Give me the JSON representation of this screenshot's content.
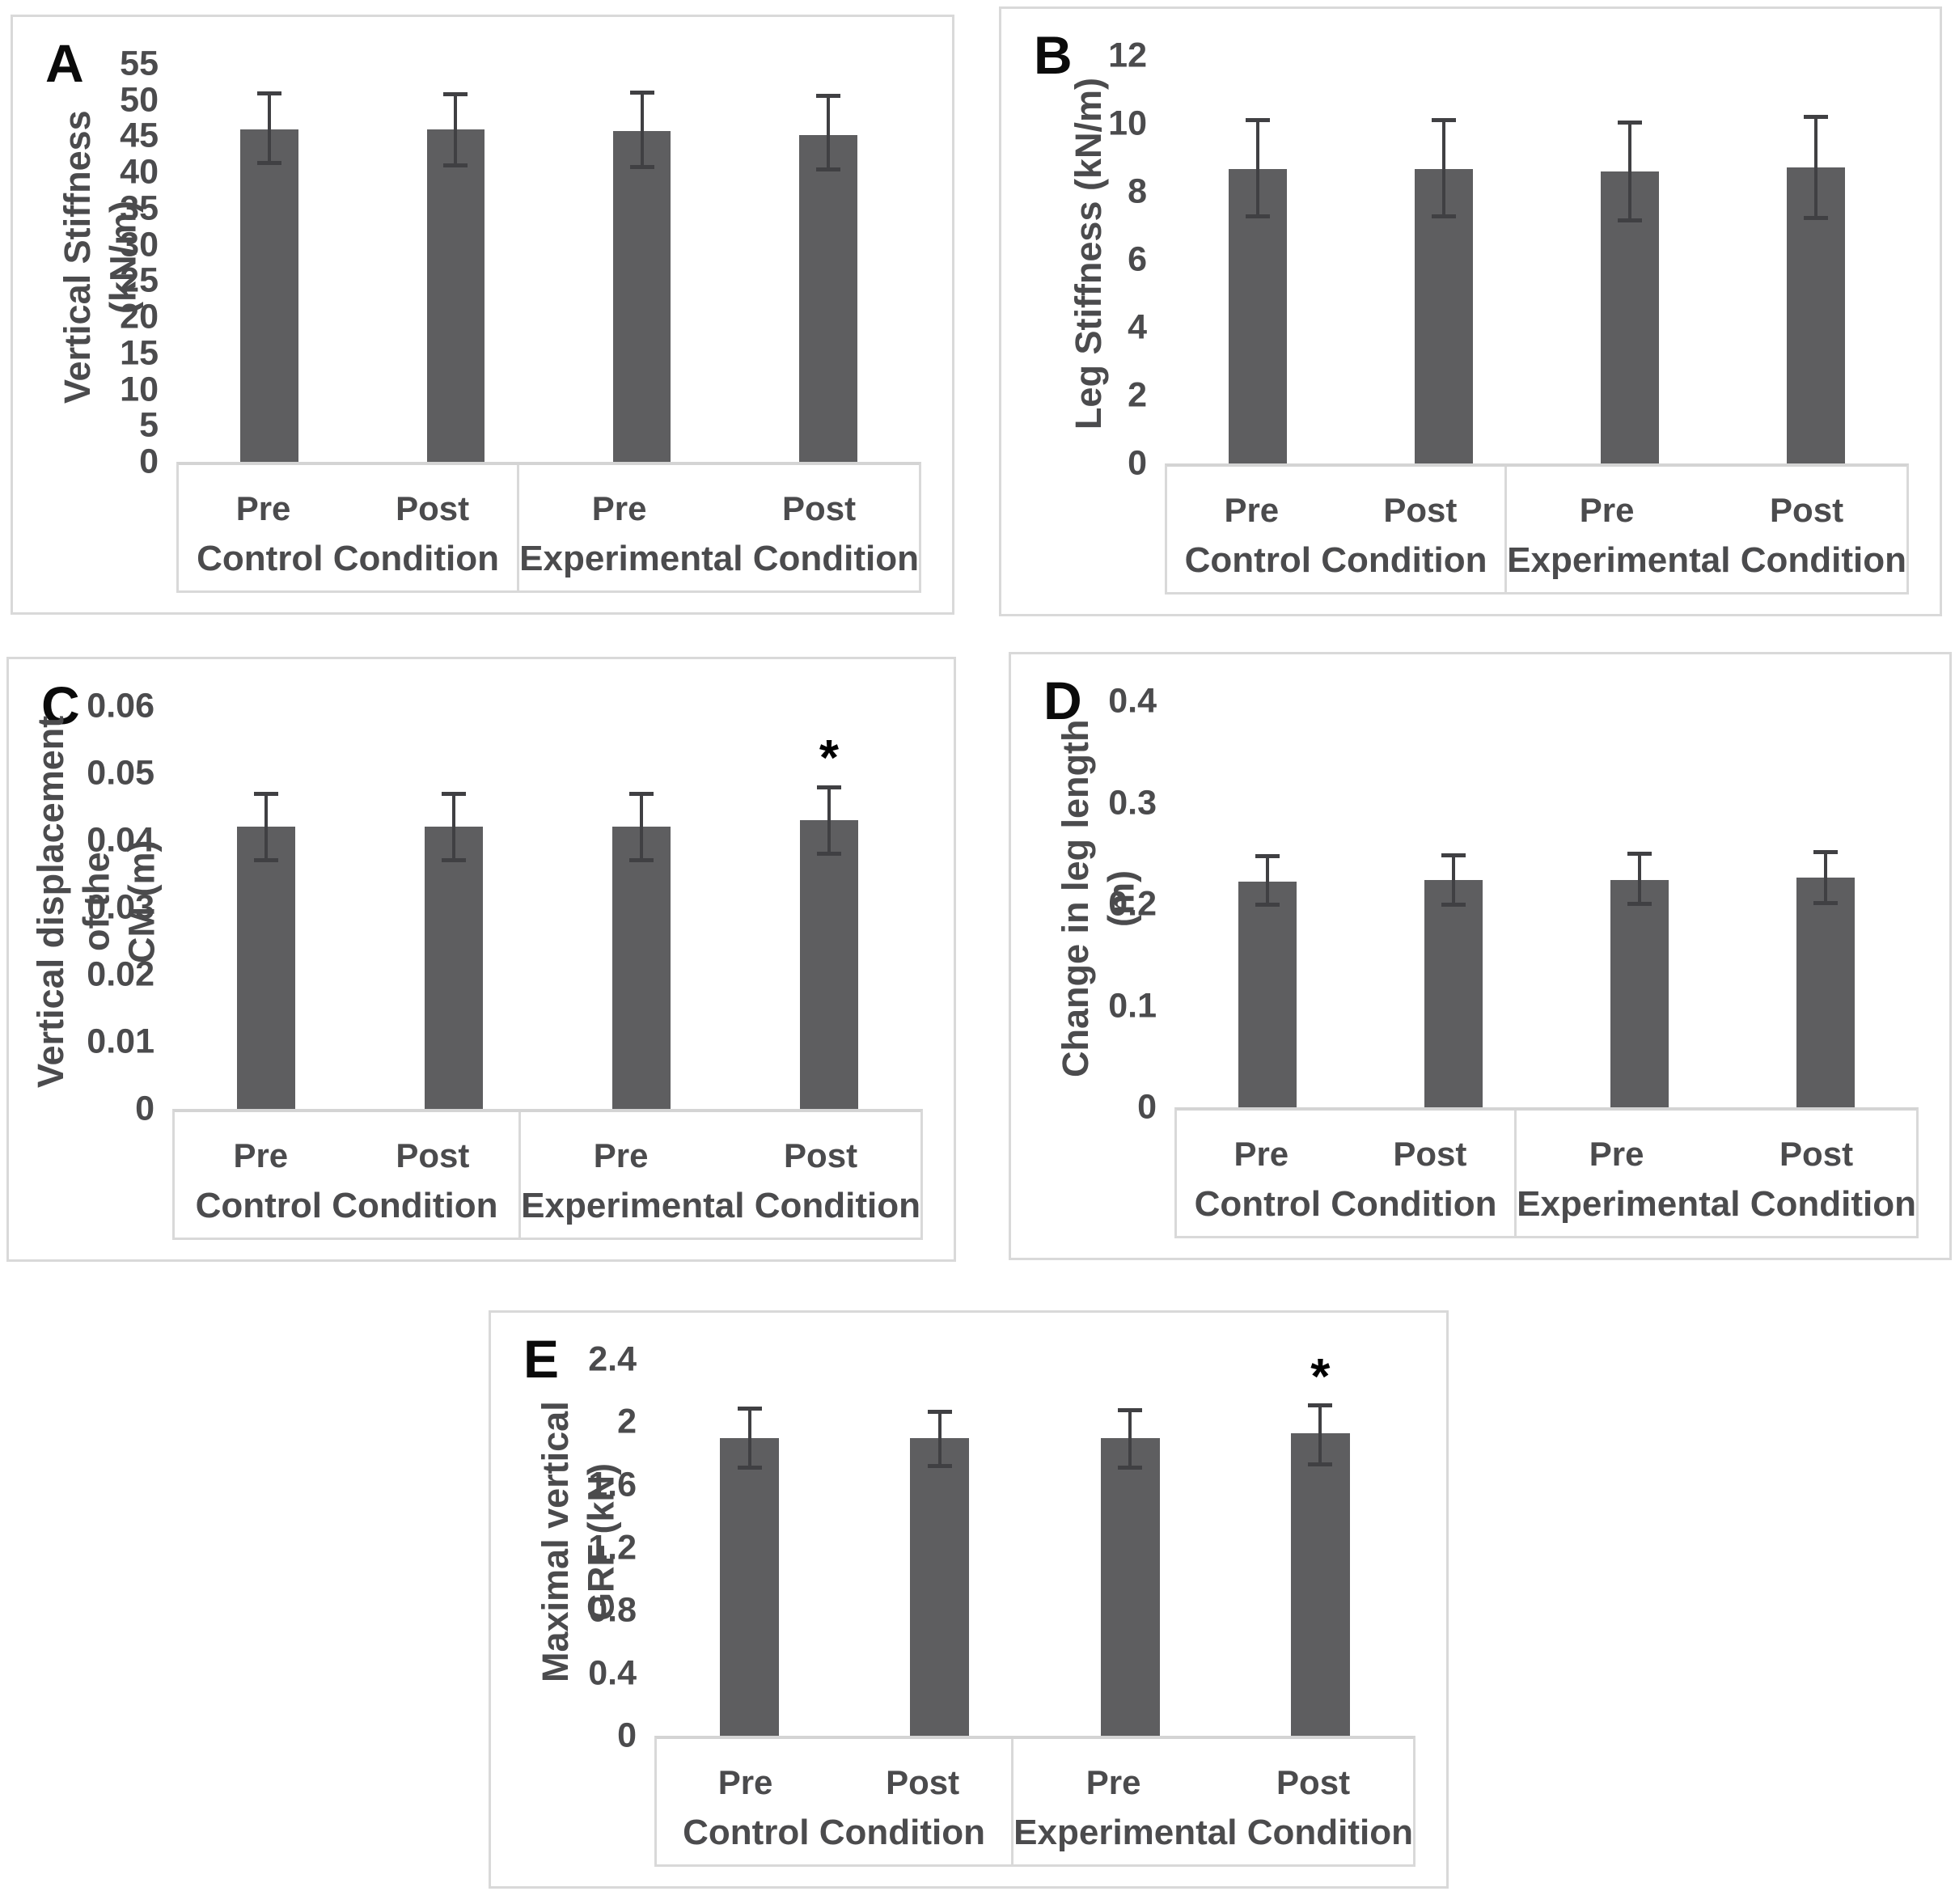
{
  "style": {
    "bar_color": "#5e5e60",
    "error_bar_color": "#404043",
    "panel_border_color": "#d9d9d9",
    "axis_text_color": "#4b4b4d",
    "significance_marker": "*"
  },
  "chart_data": [
    {
      "panel_label": "A",
      "type": "bar",
      "ylabel": "Vertical Stiffness (kN/m)",
      "ylabel_lines": [
        "Vertical Stiffness (kN/m)"
      ],
      "ylim": [
        0,
        55
      ],
      "yticks": [
        "55",
        "50",
        "45",
        "40",
        "35",
        "30",
        "25",
        "20",
        "15",
        "10",
        "5",
        "0"
      ],
      "categories": [
        "Pre",
        "Post",
        "Pre",
        "Post"
      ],
      "group_labels": [
        "Control Condition",
        "Experimental Condition"
      ],
      "values": [
        45.9,
        45.9,
        45.7,
        45.2
      ],
      "err_up": [
        5.1,
        5.0,
        5.4,
        5.4
      ],
      "err_down": [
        4.7,
        5.0,
        5.0,
        4.8
      ],
      "sig": [
        false,
        false,
        false,
        false
      ]
    },
    {
      "panel_label": "B",
      "type": "bar",
      "ylabel": "Leg Stiffness (kN/m)",
      "ylabel_lines": [
        "Leg Stiffness (kN/m)"
      ],
      "ylim": [
        0,
        12
      ],
      "yticks": [
        "12",
        "10",
        "8",
        "6",
        "4",
        "2",
        "0"
      ],
      "categories": [
        "Pre",
        "Post",
        "Pre",
        "Post"
      ],
      "group_labels": [
        "Control Condition",
        "Experimental Condition"
      ],
      "values": [
        8.66,
        8.66,
        8.6,
        8.72
      ],
      "err_up": [
        1.45,
        1.45,
        1.45,
        1.5
      ],
      "err_down": [
        1.4,
        1.4,
        1.45,
        1.5
      ],
      "sig": [
        false,
        false,
        false,
        false
      ]
    },
    {
      "panel_label": "C",
      "type": "bar",
      "ylabel": "Vertical displacement of the CM (m)",
      "ylabel_lines": [
        "Vertical displacement of the",
        "CM (m)"
      ],
      "ylim": [
        0,
        0.06
      ],
      "yticks": [
        "0.06",
        "0.05",
        "0.04",
        "0.03",
        "0.02",
        "0.01",
        "0"
      ],
      "categories": [
        "Pre",
        "Post",
        "Pre",
        "Post"
      ],
      "group_labels": [
        "Control Condition",
        "Experimental Condition"
      ],
      "values": [
        0.042,
        0.042,
        0.042,
        0.043
      ],
      "err_up": [
        0.005,
        0.005,
        0.005,
        0.005
      ],
      "err_down": [
        0.005,
        0.005,
        0.005,
        0.005
      ],
      "sig": [
        false,
        false,
        false,
        true
      ]
    },
    {
      "panel_label": "D",
      "type": "bar",
      "ylabel": "Change in leg length (m)",
      "ylabel_lines": [
        "Change in leg length (m)"
      ],
      "ylim": [
        0,
        0.4
      ],
      "yticks": [
        "0.4",
        "0.3",
        "0.2",
        "0.1",
        "0"
      ],
      "categories": [
        "Pre",
        "Post",
        "Pre",
        "Post"
      ],
      "group_labels": [
        "Control Condition",
        "Experimental Condition"
      ],
      "values": [
        0.222,
        0.224,
        0.224,
        0.226
      ],
      "err_up": [
        0.026,
        0.025,
        0.026,
        0.026
      ],
      "err_down": [
        0.023,
        0.025,
        0.024,
        0.025
      ],
      "sig": [
        false,
        false,
        false,
        false
      ]
    },
    {
      "panel_label": "E",
      "type": "bar",
      "ylabel": "Maximal vertical GRF (kN)",
      "ylabel_lines": [
        "Maximal vertical GRF (kN)"
      ],
      "ylim": [
        0,
        2.4
      ],
      "yticks": [
        "2.4",
        "2",
        "1.6",
        "1.2",
        "0.8",
        "0.4",
        "0"
      ],
      "categories": [
        "Pre",
        "Post",
        "Pre",
        "Post"
      ],
      "group_labels": [
        "Control Condition",
        "Experimental Condition"
      ],
      "values": [
        1.9,
        1.9,
        1.9,
        1.93
      ],
      "err_up": [
        0.19,
        0.17,
        0.18,
        0.18
      ],
      "err_down": [
        0.19,
        0.18,
        0.19,
        0.2
      ],
      "sig": [
        false,
        false,
        false,
        true
      ]
    }
  ]
}
